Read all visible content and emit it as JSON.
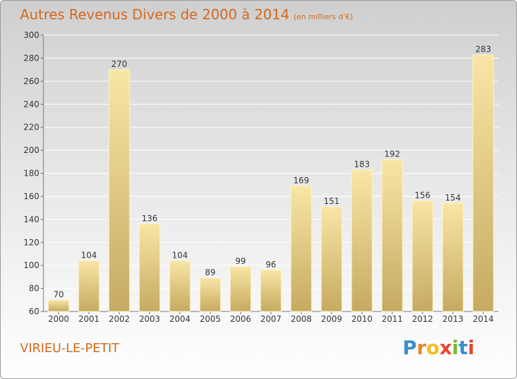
{
  "title": {
    "main": "Autres Revenus Divers de 2000 à 2014",
    "unit": "(en milliers d'€)"
  },
  "place_name": "VIRIEU-LE-PETIT",
  "logo": {
    "letters": [
      "P",
      "r",
      "o",
      "x",
      "i",
      "t",
      "i"
    ],
    "colors": [
      "#3a8fd0",
      "#e8862a",
      "#f0c020",
      "#e8452c",
      "#7ab834",
      "#3a8fd0",
      "#e8452c"
    ]
  },
  "colors": {
    "title": "#d2691e",
    "bar_light": "#f6e3a0",
    "bar_dark": "#c8ac62",
    "grid": "#ffffff",
    "axis_text": "#333333"
  },
  "chart_data": {
    "type": "bar",
    "title": "Autres Revenus Divers de 2000 à 2014",
    "subtitle": "(en milliers d'€)",
    "xlabel": "",
    "ylabel": "",
    "categories": [
      "2000",
      "2001",
      "2002",
      "2003",
      "2004",
      "2005",
      "2006",
      "2007",
      "2008",
      "2009",
      "2010",
      "2011",
      "2012",
      "2013",
      "2014"
    ],
    "values": [
      70,
      104,
      270,
      136,
      104,
      89,
      99,
      96,
      169,
      151,
      183,
      192,
      156,
      154,
      283
    ],
    "data_labels": [
      "70",
      "104",
      "270",
      "136",
      "104",
      "89",
      "99",
      "96",
      "169",
      "151",
      "183",
      "192",
      "156",
      "154",
      "283"
    ],
    "ylim": [
      60,
      300
    ],
    "yticks": [
      60,
      80,
      100,
      120,
      140,
      160,
      180,
      200,
      220,
      240,
      260,
      280,
      300
    ],
    "grid": true,
    "legend": "none"
  }
}
